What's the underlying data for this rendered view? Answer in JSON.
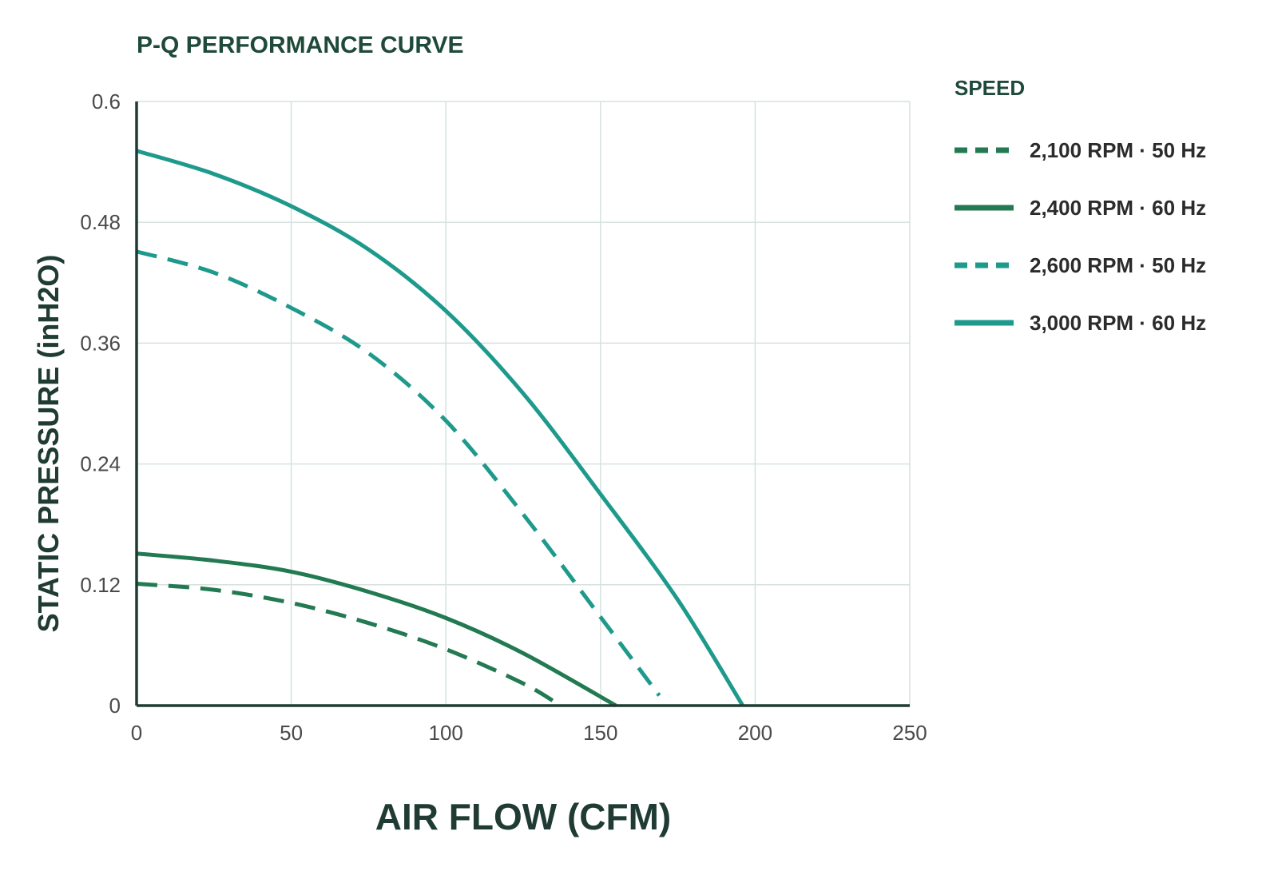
{
  "chart_data": {
    "type": "line",
    "title": "P-Q PERFORMANCE CURVE",
    "xlabel": "AIR FLOW (CFM)",
    "ylabel": "STATIC PRESSURE (inH2O)",
    "xlim": [
      0,
      250
    ],
    "ylim": [
      0,
      0.6
    ],
    "x_ticks": [
      "0",
      "50",
      "100",
      "150",
      "200",
      "250"
    ],
    "y_ticks": [
      "0",
      "0.12",
      "0.24",
      "0.36",
      "0.48",
      "0.6"
    ],
    "grid": true,
    "legend": {
      "title": "SPEED",
      "position": "right"
    },
    "series": [
      {
        "name": "2,100 RPM · 50 Hz",
        "color": "#237a52",
        "dashed": true,
        "x": [
          0,
          25,
          50,
          75,
          100,
          125,
          137
        ],
        "y": [
          0.121,
          0.115,
          0.102,
          0.082,
          0.056,
          0.022,
          0
        ]
      },
      {
        "name": "2,400 RPM · 60 Hz",
        "color": "#237a52",
        "dashed": false,
        "x": [
          0,
          25,
          50,
          75,
          100,
          125,
          155
        ],
        "y": [
          0.151,
          0.144,
          0.133,
          0.113,
          0.087,
          0.052,
          0
        ]
      },
      {
        "name": "2,600 RPM · 50 Hz",
        "color": "#1e9a8c",
        "dashed": true,
        "x": [
          0,
          25,
          50,
          75,
          100,
          125,
          150,
          169
        ],
        "y": [
          0.451,
          0.43,
          0.395,
          0.35,
          0.283,
          0.19,
          0.088,
          0.01
        ]
      },
      {
        "name": "3,000 RPM · 60 Hz",
        "color": "#1e9a8c",
        "dashed": false,
        "x": [
          0,
          25,
          50,
          75,
          100,
          125,
          150,
          175,
          196
        ],
        "y": [
          0.551,
          0.528,
          0.496,
          0.453,
          0.392,
          0.31,
          0.21,
          0.105,
          0
        ]
      }
    ]
  }
}
